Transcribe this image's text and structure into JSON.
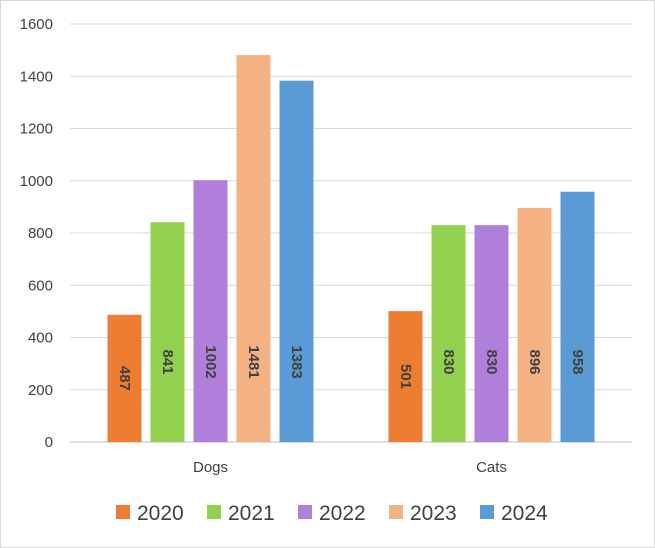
{
  "chart_data": {
    "type": "bar",
    "categories": [
      "Dogs",
      "Cats"
    ],
    "series": [
      {
        "name": "2020",
        "values": [
          487,
          501
        ],
        "color": "#ed7d31"
      },
      {
        "name": "2021",
        "values": [
          841,
          830
        ],
        "color": "#92d050"
      },
      {
        "name": "2022",
        "values": [
          1002,
          830
        ],
        "color": "#b07fdc"
      },
      {
        "name": "2023",
        "values": [
          1481,
          896
        ],
        "color": "#f4b183"
      },
      {
        "name": "2024",
        "values": [
          1383,
          958
        ],
        "color": "#5b9bd5"
      }
    ],
    "ylim": [
      0,
      1600
    ],
    "yticks": [
      0,
      200,
      400,
      600,
      800,
      1000,
      1200,
      1400,
      1600
    ],
    "grid": true,
    "legend_position": "bottom",
    "data_labels": "inside-rotated"
  }
}
